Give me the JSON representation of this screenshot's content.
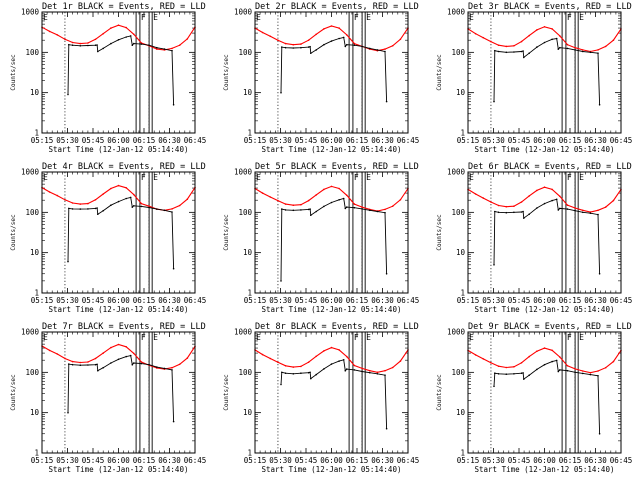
{
  "chart_data": [
    {
      "type": "line",
      "title": "Det 1r BLACK = Events, RED = LLD",
      "xlabel": "Start Time (12-Jan-12 05:14:40)",
      "ylabel": "Counts/sec",
      "marker_labels": [
        "F",
        "E"
      ],
      "x_ticks": [
        "05:15",
        "05:30",
        "05:45",
        "06:00",
        "06:15",
        "06:30",
        "06:45"
      ],
      "y_ticks": [
        "1",
        "10",
        "100",
        "1000"
      ],
      "ylim": [
        1,
        1000
      ],
      "series": [
        {
          "name": "LLD",
          "color": "#ff0000",
          "x": [
            0,
            5,
            10,
            15,
            20,
            25,
            30,
            35,
            40,
            45,
            50,
            55,
            60,
            65,
            70,
            75,
            80,
            85,
            90,
            95,
            100
          ],
          "values": [
            420,
            330,
            270,
            210,
            175,
            165,
            170,
            210,
            290,
            400,
            470,
            410,
            280,
            170,
            145,
            120,
            115,
            125,
            150,
            215,
            420
          ]
        },
        {
          "name": "Events",
          "color": "#000000",
          "x": [
            17,
            17.5,
            20,
            25,
            30,
            35,
            36,
            36.5,
            40,
            45,
            50,
            55,
            58,
            59,
            60,
            65,
            70,
            75,
            80,
            85,
            86
          ],
          "values": [
            9,
            155,
            150,
            145,
            148,
            150,
            152,
            105,
            125,
            165,
            205,
            240,
            255,
            150,
            165,
            160,
            150,
            130,
            120,
            110,
            5
          ]
        }
      ]
    },
    {
      "type": "line",
      "title": "Det 2r BLACK = Events, RED = LLD",
      "xlabel": "Start Time (12-Jan-12 05:14:40)",
      "ylabel": "Counts/sec",
      "marker_labels": [
        "F",
        "E"
      ],
      "x_ticks": [
        "05:15",
        "05:30",
        "05:45",
        "06:00",
        "06:15",
        "06:30",
        "06:45"
      ],
      "y_ticks": [
        "1",
        "10",
        "100",
        "1000"
      ],
      "ylim": [
        1,
        1000
      ],
      "series": [
        {
          "name": "LLD",
          "color": "#ff0000",
          "x": [
            0,
            5,
            10,
            15,
            20,
            25,
            30,
            35,
            40,
            45,
            50,
            55,
            60,
            65,
            70,
            75,
            80,
            85,
            90,
            95,
            100
          ],
          "values": [
            400,
            310,
            250,
            200,
            165,
            155,
            160,
            200,
            280,
            380,
            450,
            400,
            270,
            165,
            140,
            120,
            110,
            120,
            145,
            210,
            400
          ]
        },
        {
          "name": "Events",
          "color": "#000000",
          "x": [
            17,
            17.5,
            20,
            25,
            30,
            35,
            36,
            36.5,
            40,
            45,
            50,
            55,
            58,
            59,
            60,
            65,
            70,
            75,
            80,
            85,
            86
          ],
          "values": [
            10,
            135,
            130,
            128,
            130,
            135,
            138,
            95,
            115,
            155,
            190,
            220,
            235,
            140,
            155,
            150,
            140,
            125,
            115,
            105,
            6
          ]
        }
      ]
    },
    {
      "type": "line",
      "title": "Det 3r BLACK = Events, RED = LLD",
      "xlabel": "Start Time (12-Jan-12 05:14:40)",
      "ylabel": "Counts/sec",
      "marker_labels": [
        "F",
        "E"
      ],
      "x_ticks": [
        "05:15",
        "05:30",
        "05:45",
        "06:00",
        "06:15",
        "06:30",
        "06:45"
      ],
      "y_ticks": [
        "1",
        "10",
        "100",
        "1000"
      ],
      "ylim": [
        1,
        1000
      ],
      "series": [
        {
          "name": "LLD",
          "color": "#ff0000",
          "x": [
            0,
            5,
            10,
            15,
            20,
            25,
            30,
            35,
            40,
            45,
            50,
            55,
            60,
            65,
            70,
            75,
            80,
            85,
            90,
            95,
            100
          ],
          "values": [
            380,
            290,
            230,
            185,
            150,
            140,
            145,
            185,
            260,
            360,
            430,
            380,
            255,
            155,
            130,
            115,
            105,
            115,
            140,
            200,
            380
          ]
        },
        {
          "name": "Events",
          "color": "#000000",
          "x": [
            17,
            17.5,
            20,
            25,
            30,
            35,
            36,
            36.5,
            40,
            45,
            50,
            55,
            58,
            59,
            60,
            65,
            70,
            75,
            80,
            85,
            86
          ],
          "values": [
            6,
            110,
            105,
            100,
            102,
            105,
            108,
            75,
            95,
            135,
            175,
            210,
            220,
            120,
            130,
            125,
            115,
            105,
            100,
            95,
            5
          ]
        }
      ]
    },
    {
      "type": "line",
      "title": "Det 4r BLACK = Events, RED = LLD",
      "xlabel": "Start Time (12-Jan-12 05:14:40)",
      "ylabel": "Counts/sec",
      "marker_labels": [
        "F",
        "E"
      ],
      "x_ticks": [
        "05:15",
        "05:30",
        "05:45",
        "06:00",
        "06:15",
        "06:30",
        "06:45"
      ],
      "y_ticks": [
        "1",
        "10",
        "100",
        "1000"
      ],
      "ylim": [
        1,
        1000
      ],
      "series": [
        {
          "name": "LLD",
          "color": "#ff0000",
          "x": [
            0,
            5,
            10,
            15,
            20,
            25,
            30,
            35,
            40,
            45,
            50,
            55,
            60,
            65,
            70,
            75,
            80,
            85,
            90,
            95,
            100
          ],
          "values": [
            410,
            320,
            260,
            205,
            170,
            160,
            165,
            205,
            285,
            390,
            460,
            405,
            275,
            165,
            142,
            120,
            112,
            122,
            148,
            212,
            410
          ]
        },
        {
          "name": "Events",
          "color": "#000000",
          "x": [
            17,
            17.5,
            20,
            25,
            30,
            35,
            36,
            36.5,
            40,
            45,
            50,
            55,
            58,
            59,
            60,
            65,
            70,
            75,
            80,
            85,
            86
          ],
          "values": [
            6,
            125,
            122,
            120,
            122,
            125,
            128,
            90,
            110,
            150,
            185,
            220,
            235,
            135,
            145,
            140,
            132,
            120,
            112,
            102,
            4
          ]
        }
      ]
    },
    {
      "type": "line",
      "title": "Det 5r BLACK = Events, RED = LLD",
      "xlabel": "Start Time (12-Jan-12 05:14:40)",
      "ylabel": "Counts/sec",
      "marker_labels": [
        "F",
        "E"
      ],
      "x_ticks": [
        "05:15",
        "05:30",
        "05:45",
        "06:00",
        "06:15",
        "06:30",
        "06:45"
      ],
      "y_ticks": [
        "1",
        "10",
        "100",
        "1000"
      ],
      "ylim": [
        1,
        1000
      ],
      "series": [
        {
          "name": "LLD",
          "color": "#ff0000",
          "x": [
            0,
            5,
            10,
            15,
            20,
            25,
            30,
            35,
            40,
            45,
            50,
            55,
            60,
            65,
            70,
            75,
            80,
            85,
            90,
            95,
            100
          ],
          "values": [
            390,
            300,
            240,
            195,
            160,
            150,
            155,
            195,
            270,
            370,
            440,
            390,
            265,
            160,
            135,
            118,
            108,
            118,
            142,
            205,
            390
          ]
        },
        {
          "name": "Events",
          "color": "#000000",
          "x": [
            17,
            17.5,
            20,
            25,
            30,
            35,
            36,
            36.5,
            40,
            45,
            50,
            55,
            58,
            59,
            60,
            65,
            70,
            75,
            80,
            85,
            86
          ],
          "values": [
            2,
            120,
            115,
            112,
            115,
            118,
            120,
            85,
            105,
            140,
            175,
            205,
            220,
            125,
            135,
            130,
            122,
            112,
            105,
            98,
            3
          ]
        }
      ]
    },
    {
      "type": "line",
      "title": "Det 6r BLACK = Events, RED = LLD",
      "xlabel": "Start Time (12-Jan-12 05:14:40)",
      "ylabel": "Counts/sec",
      "marker_labels": [
        "F",
        "E"
      ],
      "x_ticks": [
        "05:15",
        "05:30",
        "05:45",
        "06:00",
        "06:15",
        "06:30",
        "06:45"
      ],
      "y_ticks": [
        "1",
        "10",
        "100",
        "1000"
      ],
      "ylim": [
        1,
        1000
      ],
      "series": [
        {
          "name": "LLD",
          "color": "#ff0000",
          "x": [
            0,
            5,
            10,
            15,
            20,
            25,
            30,
            35,
            40,
            45,
            50,
            55,
            60,
            65,
            70,
            75,
            80,
            85,
            90,
            95,
            100
          ],
          "values": [
            370,
            285,
            225,
            180,
            148,
            138,
            142,
            180,
            255,
            350,
            420,
            370,
            250,
            150,
            128,
            112,
            102,
            112,
            135,
            195,
            370
          ]
        },
        {
          "name": "Events",
          "color": "#000000",
          "x": [
            17,
            17.5,
            20,
            25,
            30,
            35,
            36,
            36.5,
            40,
            45,
            50,
            55,
            58,
            59,
            60,
            65,
            70,
            75,
            80,
            85,
            86
          ],
          "values": [
            5,
            105,
            100,
            98,
            100,
            102,
            105,
            72,
            90,
            128,
            165,
            195,
            210,
            115,
            125,
            120,
            110,
            100,
            95,
            88,
            3
          ]
        }
      ]
    },
    {
      "type": "line",
      "title": "Det 7r BLACK = Events, RED = LLD",
      "xlabel": "Start Time (12-Jan-12 05:14:40)",
      "ylabel": "Counts/sec",
      "marker_labels": [
        "F",
        "E"
      ],
      "x_ticks": [
        "05:15",
        "05:30",
        "05:45",
        "06:00",
        "06:15",
        "06:30",
        "06:45"
      ],
      "y_ticks": [
        "1",
        "10",
        "100",
        "1000"
      ],
      "ylim": [
        1,
        1000
      ],
      "series": [
        {
          "name": "LLD",
          "color": "#ff0000",
          "x": [
            0,
            5,
            10,
            15,
            20,
            25,
            30,
            35,
            40,
            45,
            50,
            55,
            60,
            65,
            70,
            75,
            80,
            85,
            90,
            95,
            100
          ],
          "values": [
            450,
            350,
            285,
            220,
            185,
            175,
            180,
            220,
            300,
            410,
            490,
            430,
            295,
            180,
            150,
            128,
            120,
            130,
            158,
            225,
            440
          ]
        },
        {
          "name": "Events",
          "color": "#000000",
          "x": [
            17,
            17.5,
            20,
            25,
            30,
            35,
            36,
            36.5,
            40,
            45,
            50,
            55,
            58,
            59,
            60,
            65,
            70,
            75,
            80,
            85,
            86
          ],
          "values": [
            10,
            160,
            155,
            150,
            152,
            155,
            158,
            110,
            130,
            170,
            210,
            245,
            260,
            155,
            170,
            165,
            155,
            135,
            125,
            115,
            6
          ]
        }
      ]
    },
    {
      "type": "line",
      "title": "Det 8r BLACK = Events, RED = LLD",
      "xlabel": "Start Time (12-Jan-12 05:14:40)",
      "ylabel": "Counts/sec",
      "marker_labels": [
        "F",
        "E"
      ],
      "x_ticks": [
        "05:15",
        "05:30",
        "05:45",
        "06:00",
        "06:15",
        "06:30",
        "06:45"
      ],
      "y_ticks": [
        "1",
        "10",
        "100",
        "1000"
      ],
      "ylim": [
        1,
        1000
      ],
      "series": [
        {
          "name": "LLD",
          "color": "#ff0000",
          "x": [
            0,
            5,
            10,
            15,
            20,
            25,
            30,
            35,
            40,
            45,
            50,
            55,
            60,
            65,
            70,
            75,
            80,
            85,
            90,
            95,
            100
          ],
          "values": [
            360,
            275,
            220,
            178,
            145,
            135,
            140,
            178,
            250,
            340,
            410,
            360,
            245,
            148,
            125,
            110,
            100,
            110,
            132,
            190,
            360
          ]
        },
        {
          "name": "Events",
          "color": "#000000",
          "x": [
            17,
            17.5,
            20,
            25,
            30,
            35,
            36,
            36.5,
            40,
            45,
            50,
            55,
            58,
            59,
            60,
            65,
            70,
            75,
            80,
            85,
            86
          ],
          "values": [
            50,
            100,
            95,
            92,
            95,
            98,
            100,
            70,
            88,
            122,
            160,
            190,
            205,
            110,
            120,
            115,
            105,
            98,
            92,
            85,
            4
          ]
        }
      ]
    },
    {
      "type": "line",
      "title": "Det 9r BLACK = Events, RED = LLD",
      "xlabel": "Start Time (12-Jan-12 05:14:40)",
      "ylabel": "Counts/sec",
      "marker_labels": [
        "F",
        "E"
      ],
      "x_ticks": [
        "05:15",
        "05:30",
        "05:45",
        "06:00",
        "06:15",
        "06:30",
        "06:45"
      ],
      "y_ticks": [
        "1",
        "10",
        "100",
        "1000"
      ],
      "ylim": [
        1,
        1000
      ],
      "series": [
        {
          "name": "LLD",
          "color": "#ff0000",
          "x": [
            0,
            5,
            10,
            15,
            20,
            25,
            30,
            35,
            40,
            45,
            50,
            55,
            60,
            65,
            70,
            75,
            80,
            85,
            90,
            95,
            100
          ],
          "values": [
            350,
            270,
            215,
            172,
            142,
            132,
            137,
            172,
            245,
            335,
            400,
            352,
            240,
            145,
            122,
            108,
            98,
            108,
            130,
            185,
            350
          ]
        },
        {
          "name": "Events",
          "color": "#000000",
          "x": [
            17,
            17.5,
            20,
            25,
            30,
            35,
            36,
            36.5,
            40,
            45,
            50,
            55,
            58,
            59,
            60,
            65,
            70,
            75,
            80,
            85,
            86
          ],
          "values": [
            45,
            95,
            92,
            90,
            92,
            95,
            97,
            68,
            85,
            118,
            155,
            185,
            198,
            105,
            115,
            110,
            100,
            94,
            88,
            82,
            3
          ]
        }
      ]
    }
  ]
}
